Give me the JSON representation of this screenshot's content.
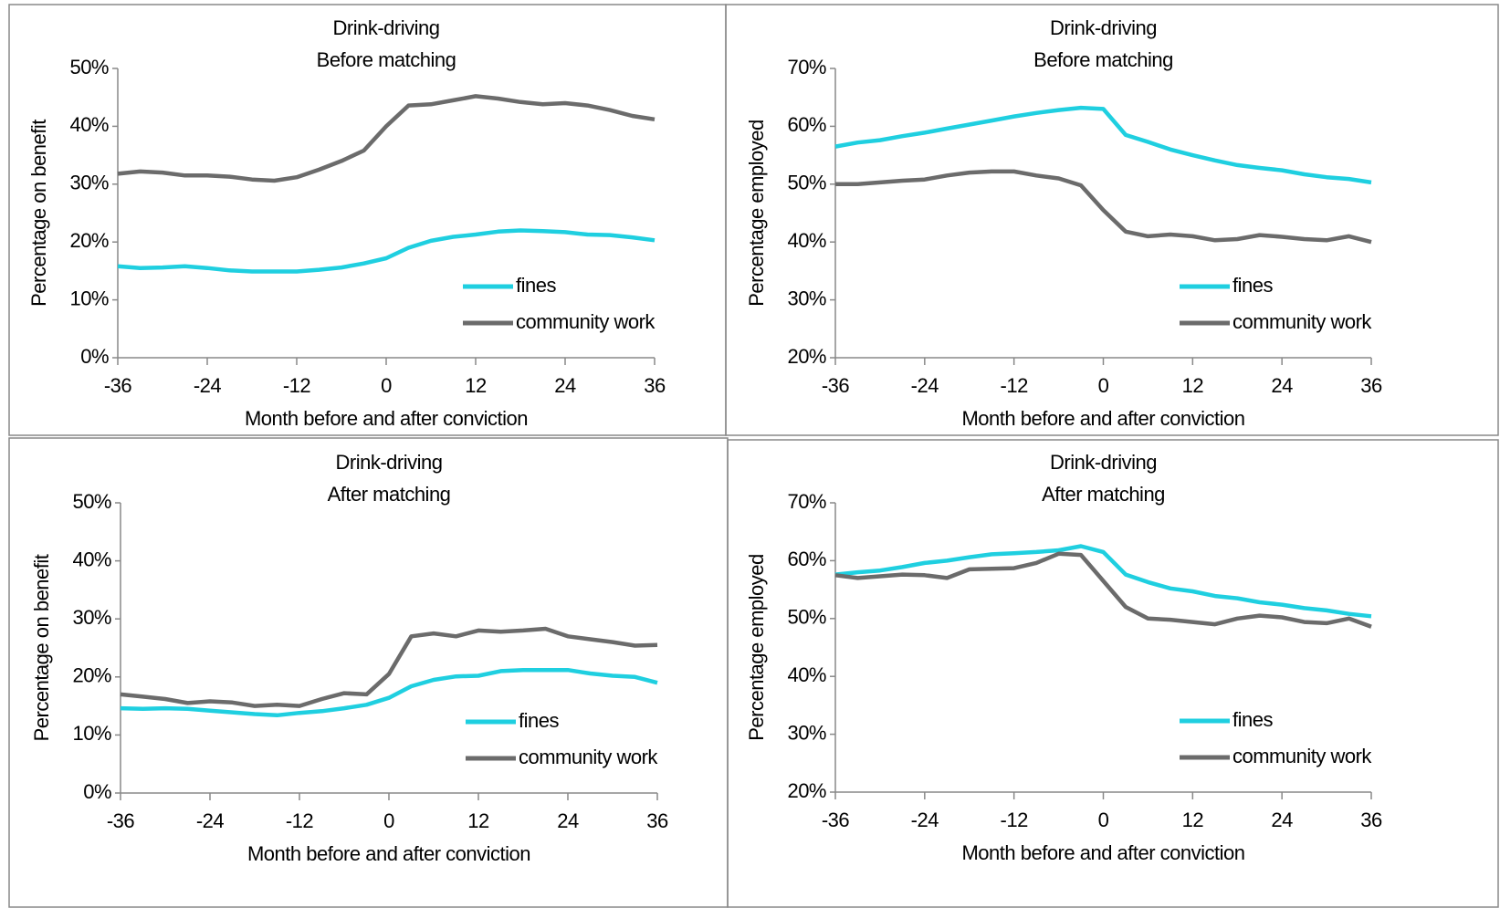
{
  "chart_data": [
    {
      "type": "line",
      "title": "Drink-driving",
      "subtitle": "Before matching",
      "x_label": "Month before and after conviction",
      "y_label": "Percentage on benefit",
      "x": [
        -36,
        -33,
        -30,
        -27,
        -24,
        -21,
        -18,
        -15,
        -12,
        -9,
        -6,
        -3,
        0,
        3,
        6,
        9,
        12,
        15,
        18,
        21,
        24,
        27,
        30,
        33,
        36
      ],
      "xlim": [
        -36,
        36
      ],
      "xticks": [
        -36,
        -24,
        -12,
        0,
        12,
        24,
        36
      ],
      "ylim": [
        0,
        50
      ],
      "yticks": [
        {
          "value": 0,
          "label": "0%"
        },
        {
          "value": 10,
          "label": "10%"
        },
        {
          "value": 20,
          "label": "20%"
        },
        {
          "value": 30,
          "label": "30%"
        },
        {
          "value": 40,
          "label": "40%"
        },
        {
          "value": 50,
          "label": "50%"
        }
      ],
      "legend": "lower right",
      "series": [
        {
          "name": "fines",
          "color": "#1fcfe0",
          "values": [
            15.8,
            15.5,
            15.6,
            15.8,
            15.5,
            15.1,
            14.9,
            14.9,
            14.9,
            15.2,
            15.6,
            16.3,
            17.2,
            19.0,
            20.2,
            20.9,
            21.3,
            21.8,
            22.0,
            21.9,
            21.7,
            21.3,
            21.2,
            20.8,
            20.3
          ]
        },
        {
          "name": "community work",
          "color": "#6b6b6b",
          "values": [
            31.8,
            32.2,
            32.0,
            31.5,
            31.5,
            31.3,
            30.8,
            30.6,
            31.2,
            32.5,
            34.0,
            35.8,
            40.0,
            43.6,
            43.8,
            44.5,
            45.2,
            44.8,
            44.2,
            43.8,
            44.0,
            43.6,
            42.8,
            41.8,
            41.2
          ]
        }
      ]
    },
    {
      "type": "line",
      "title": "Drink-driving",
      "subtitle": "Before matching",
      "x_label": "Month before and after conviction",
      "y_label": "Percentage employed",
      "x": [
        -36,
        -33,
        -30,
        -27,
        -24,
        -21,
        -18,
        -15,
        -12,
        -9,
        -6,
        -3,
        0,
        3,
        6,
        9,
        12,
        15,
        18,
        21,
        24,
        27,
        30,
        33,
        36
      ],
      "xlim": [
        -36,
        36
      ],
      "xticks": [
        -36,
        -24,
        -12,
        0,
        12,
        24,
        36
      ],
      "ylim": [
        20,
        70
      ],
      "yticks": [
        {
          "value": 20,
          "label": "20%"
        },
        {
          "value": 30,
          "label": "30%"
        },
        {
          "value": 40,
          "label": "40%"
        },
        {
          "value": 50,
          "label": "50%"
        },
        {
          "value": 60,
          "label": "60%"
        },
        {
          "value": 70,
          "label": "70%"
        }
      ],
      "legend": "lower right",
      "series": [
        {
          "name": "fines",
          "color": "#1fcfe0",
          "values": [
            56.5,
            57.2,
            57.6,
            58.3,
            58.9,
            59.6,
            60.3,
            61.0,
            61.7,
            62.3,
            62.8,
            63.2,
            63.0,
            58.5,
            57.3,
            56.0,
            55.0,
            54.1,
            53.3,
            52.8,
            52.4,
            51.7,
            51.2,
            50.9,
            50.3
          ]
        },
        {
          "name": "community work",
          "color": "#6b6b6b",
          "values": [
            50.0,
            50.0,
            50.3,
            50.6,
            50.8,
            51.5,
            52.0,
            52.2,
            52.2,
            51.5,
            51.0,
            49.8,
            45.5,
            41.8,
            41.0,
            41.3,
            41.0,
            40.3,
            40.5,
            41.2,
            40.9,
            40.5,
            40.3,
            41.0,
            40.0
          ]
        }
      ]
    },
    {
      "type": "line",
      "title": "Drink-driving",
      "subtitle": "After matching",
      "x_label": "Month before and after conviction",
      "y_label": "Percentage on benefit",
      "x": [
        -36,
        -33,
        -30,
        -27,
        -24,
        -21,
        -18,
        -15,
        -12,
        -9,
        -6,
        -3,
        0,
        3,
        6,
        9,
        12,
        15,
        18,
        21,
        24,
        27,
        30,
        33,
        36
      ],
      "xlim": [
        -36,
        36
      ],
      "xticks": [
        -36,
        -24,
        -12,
        0,
        12,
        24,
        36
      ],
      "ylim": [
        0,
        50
      ],
      "yticks": [
        {
          "value": 0,
          "label": "0%"
        },
        {
          "value": 10,
          "label": "10%"
        },
        {
          "value": 20,
          "label": "20%"
        },
        {
          "value": 30,
          "label": "30%"
        },
        {
          "value": 40,
          "label": "40%"
        },
        {
          "value": 50,
          "label": "50%"
        }
      ],
      "legend": "lower right",
      "series": [
        {
          "name": "fines",
          "color": "#1fcfe0",
          "values": [
            14.6,
            14.5,
            14.6,
            14.5,
            14.2,
            13.9,
            13.6,
            13.4,
            13.8,
            14.1,
            14.6,
            15.2,
            16.4,
            18.4,
            19.5,
            20.1,
            20.2,
            21.0,
            21.2,
            21.2,
            21.2,
            20.6,
            20.2,
            20.0,
            19.0
          ]
        },
        {
          "name": "community work",
          "color": "#6b6b6b",
          "values": [
            17.0,
            16.6,
            16.2,
            15.5,
            15.8,
            15.6,
            15.0,
            15.2,
            15.0,
            16.2,
            17.2,
            17.0,
            20.5,
            27.0,
            27.5,
            27.0,
            28.0,
            27.8,
            28.0,
            28.3,
            27.0,
            26.5,
            26.0,
            25.4,
            25.5
          ]
        }
      ]
    },
    {
      "type": "line",
      "title": "Drink-driving",
      "subtitle": "After matching",
      "x_label": "Month before and after conviction",
      "y_label": "Percentage employed",
      "x": [
        -36,
        -33,
        -30,
        -27,
        -24,
        -21,
        -18,
        -15,
        -12,
        -9,
        -6,
        -3,
        0,
        3,
        6,
        9,
        12,
        15,
        18,
        21,
        24,
        27,
        30,
        33,
        36
      ],
      "xlim": [
        -36,
        36
      ],
      "xticks": [
        -36,
        -24,
        -12,
        0,
        12,
        24,
        36
      ],
      "ylim": [
        20,
        70
      ],
      "yticks": [
        {
          "value": 20,
          "label": "20%"
        },
        {
          "value": 30,
          "label": "30%"
        },
        {
          "value": 40,
          "label": "40%"
        },
        {
          "value": 50,
          "label": "50%"
        },
        {
          "value": 60,
          "label": "60%"
        },
        {
          "value": 70,
          "label": "70%"
        }
      ],
      "legend": "lower right",
      "series": [
        {
          "name": "fines",
          "color": "#1fcfe0",
          "values": [
            57.6,
            58.0,
            58.3,
            58.9,
            59.6,
            60.0,
            60.6,
            61.1,
            61.3,
            61.5,
            61.8,
            62.5,
            61.5,
            57.6,
            56.3,
            55.2,
            54.7,
            53.9,
            53.5,
            52.8,
            52.4,
            51.8,
            51.4,
            50.8,
            50.4
          ]
        },
        {
          "name": "community work",
          "color": "#6b6b6b",
          "values": [
            57.5,
            57.0,
            57.3,
            57.6,
            57.5,
            57.0,
            58.5,
            58.6,
            58.7,
            59.6,
            61.2,
            61.0,
            56.5,
            52.0,
            50.0,
            49.8,
            49.4,
            49.0,
            50.0,
            50.5,
            50.2,
            49.4,
            49.2,
            50.0,
            48.6
          ]
        }
      ]
    }
  ]
}
